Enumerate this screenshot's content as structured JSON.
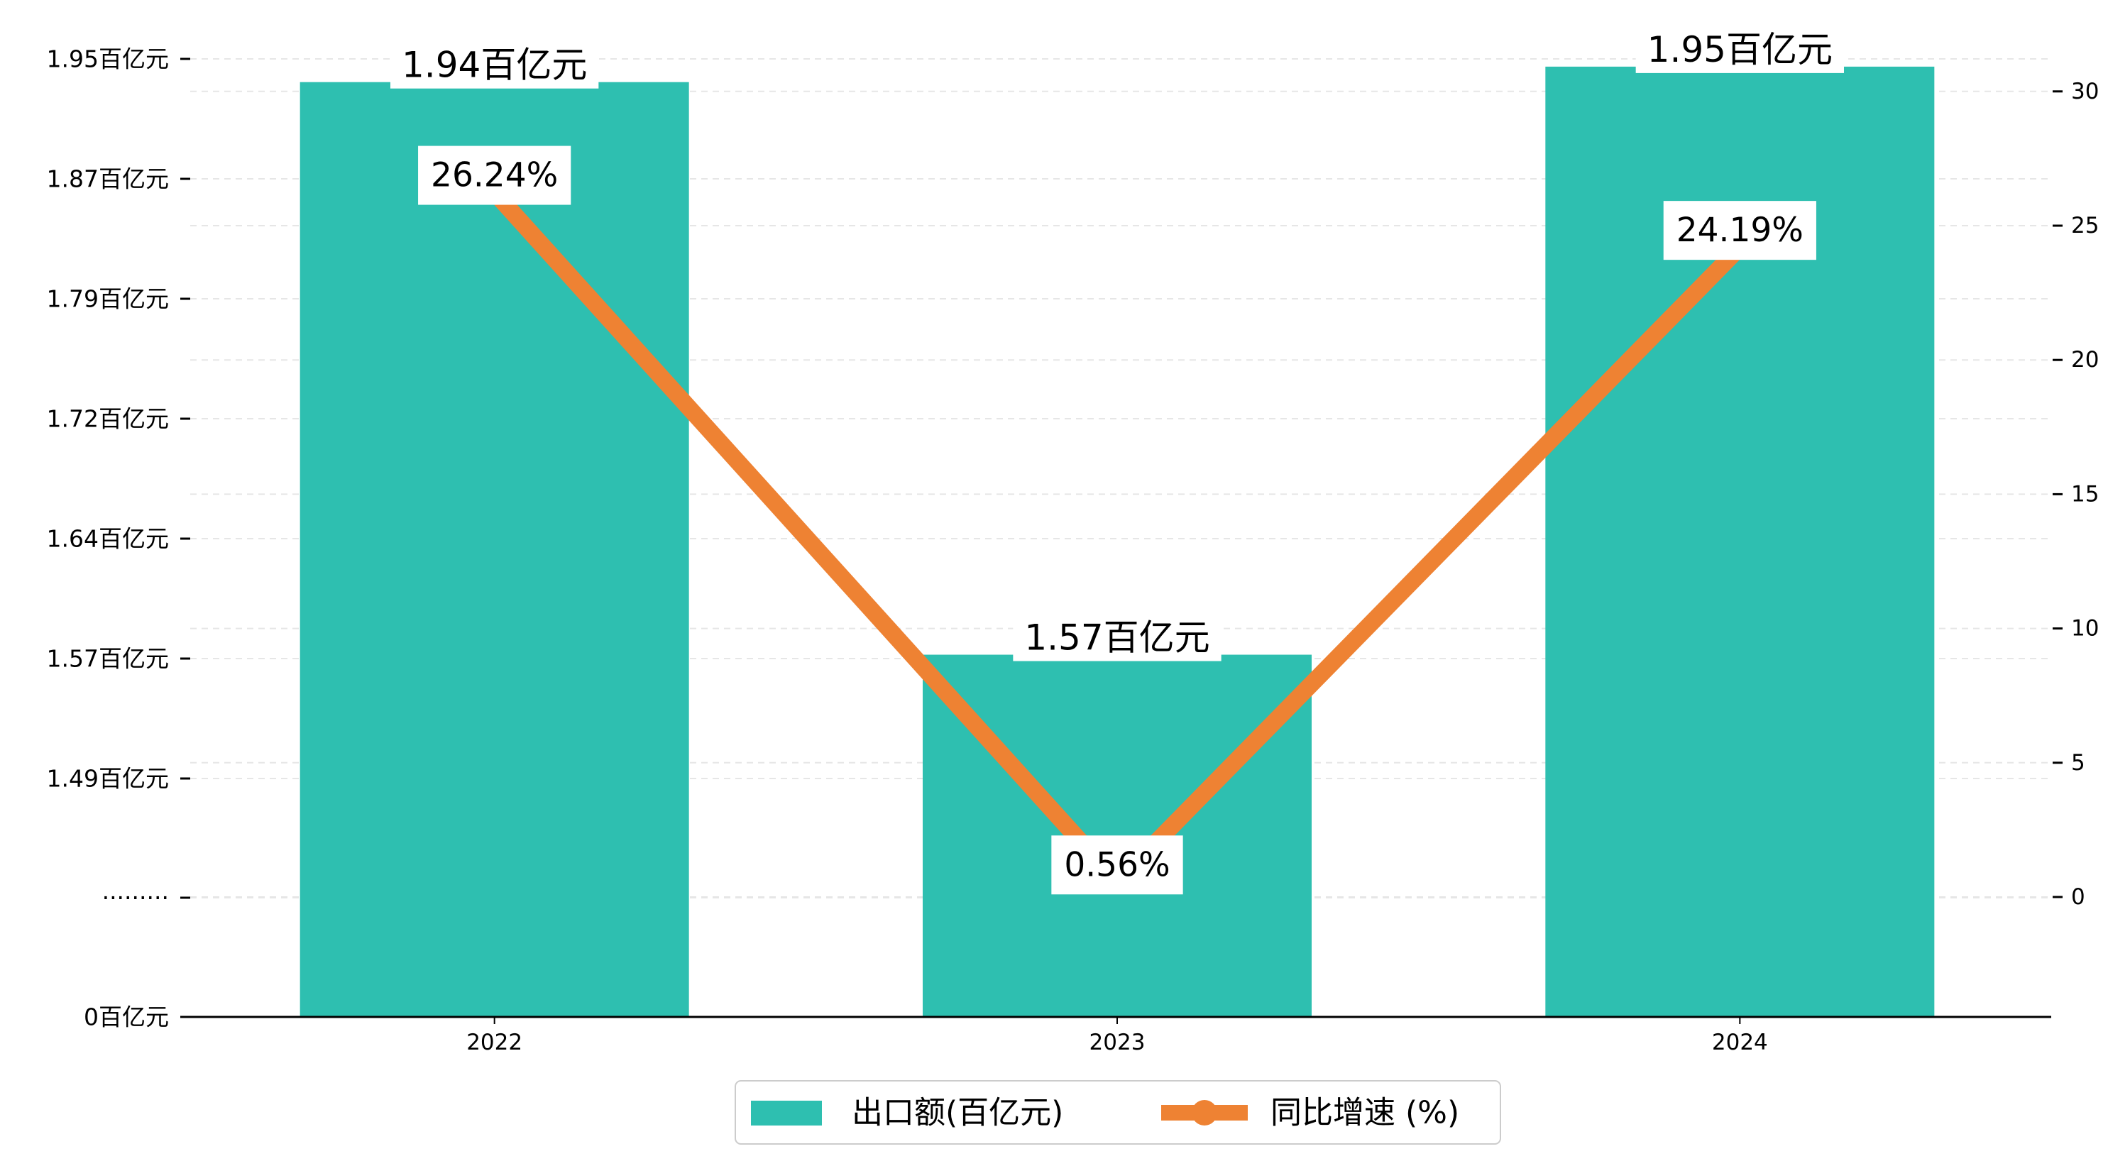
{
  "chart_data": {
    "type": "bar",
    "categories": [
      "2022",
      "2023",
      "2024"
    ],
    "series": [
      {
        "name": "出口额(百亿元)",
        "kind": "bar",
        "axis": "left",
        "values": [
          1.94,
          1.57,
          1.95
        ],
        "labels": [
          "1.94百亿元",
          "1.57百亿元",
          "1.95百亿元"
        ],
        "color": "#2ebfb0"
      },
      {
        "name": "同比增速 (%)",
        "kind": "line",
        "axis": "right",
        "values": [
          26.24,
          0.56,
          24.19
        ],
        "labels": [
          "26.24%",
          "0.56%",
          "24.19%"
        ],
        "color": "#ee8233"
      }
    ],
    "left_axis": {
      "ticks": [
        "1.95百亿元",
        "1.87百亿元",
        "1.79百亿元",
        "1.72百亿元",
        "1.64百亿元",
        "1.57百亿元",
        "1.49百亿元",
        "·········",
        "0百亿元"
      ],
      "broken": true
    },
    "right_axis": {
      "ticks": [
        "30",
        "25",
        "20",
        "15",
        "10",
        "5",
        "0"
      ],
      "ylim": [
        -4.5,
        31
      ]
    },
    "grid": true,
    "legend_position": "bottom-center"
  }
}
